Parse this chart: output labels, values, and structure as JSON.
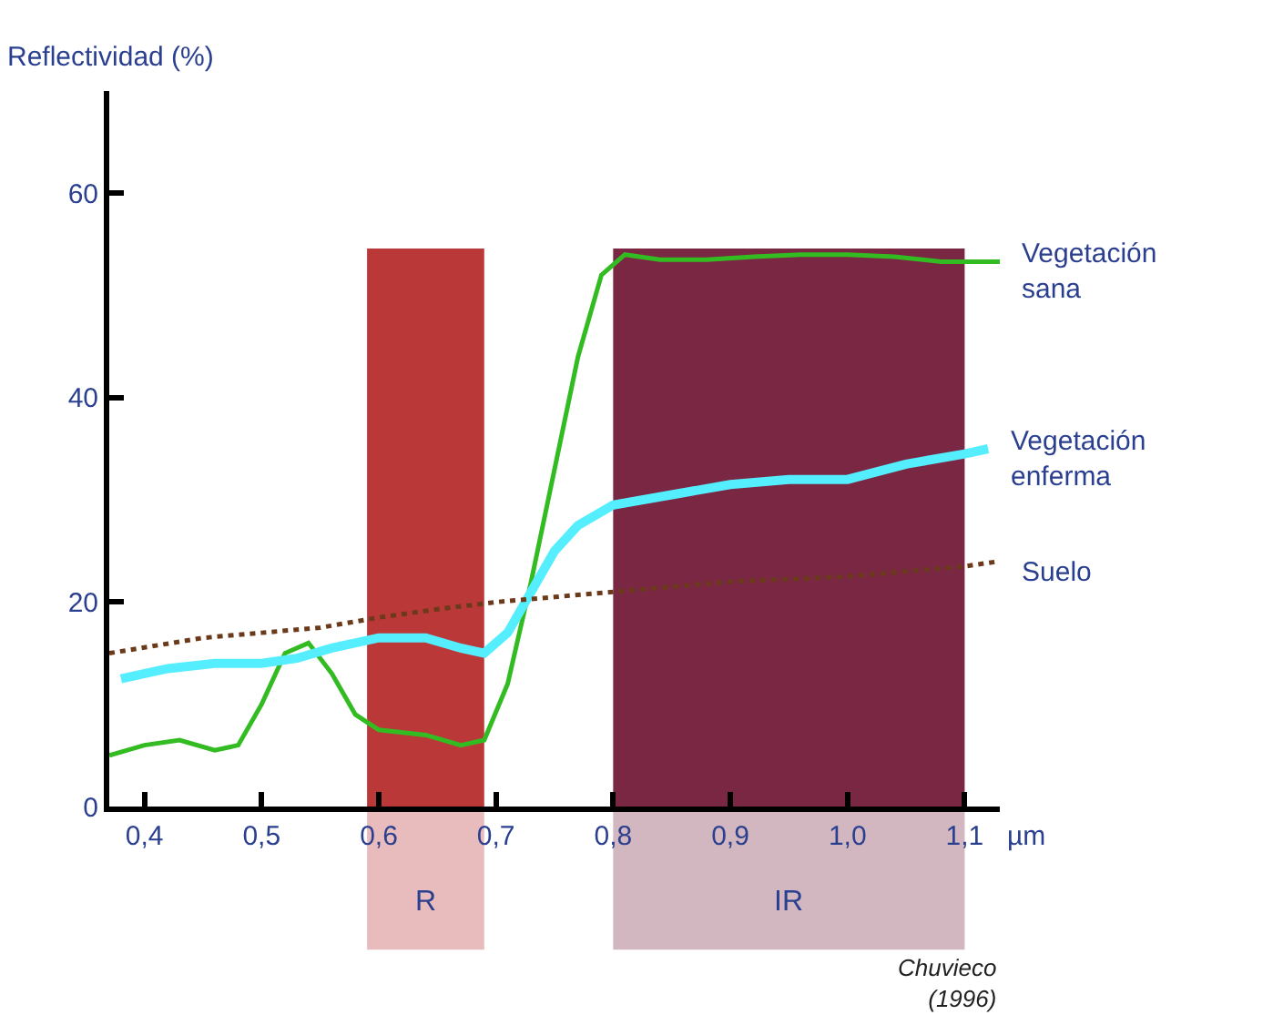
{
  "chart_data": {
    "type": "line",
    "ylabel": "Reflectividad (%)",
    "xlabel": "µm",
    "xlim": [
      0.37,
      1.13
    ],
    "xticks": [
      {
        "value": 0.4,
        "label": "0,4"
      },
      {
        "value": 0.5,
        "label": "0,5"
      },
      {
        "value": 0.6,
        "label": "0,6"
      },
      {
        "value": 0.7,
        "label": "0,7"
      },
      {
        "value": 0.8,
        "label": "0,8"
      },
      {
        "value": 0.9,
        "label": "0,9"
      },
      {
        "value": 1.0,
        "label": "1,0"
      },
      {
        "value": 1.1,
        "label": "1,1"
      }
    ],
    "ylim": [
      0,
      70
    ],
    "yticks": [
      0,
      20,
      40,
      60
    ],
    "grid": false,
    "legend": false,
    "series": [
      {
        "name": "Vegetación sana",
        "color": "#33bb22",
        "line_style": "solid",
        "x": [
          0.37,
          0.4,
          0.43,
          0.46,
          0.48,
          0.5,
          0.52,
          0.54,
          0.56,
          0.58,
          0.6,
          0.64,
          0.67,
          0.69,
          0.71,
          0.73,
          0.75,
          0.77,
          0.79,
          0.81,
          0.84,
          0.88,
          0.92,
          0.96,
          1.0,
          1.04,
          1.08,
          1.13
        ],
        "values": [
          5,
          6,
          6.5,
          5.5,
          6,
          10,
          15,
          16,
          13,
          9,
          7.5,
          7,
          6,
          6.5,
          12,
          22,
          33,
          44,
          52,
          54,
          53.5,
          53.5,
          53.8,
          54,
          54,
          53.8,
          53.3,
          53.3
        ]
      },
      {
        "name": "Vegetación enferma",
        "color": "#55eeff",
        "line_style": "solid",
        "x": [
          0.38,
          0.42,
          0.46,
          0.5,
          0.53,
          0.56,
          0.6,
          0.64,
          0.67,
          0.69,
          0.71,
          0.73,
          0.75,
          0.77,
          0.8,
          0.85,
          0.9,
          0.95,
          1.0,
          1.05,
          1.1,
          1.12
        ],
        "values": [
          12.5,
          13.5,
          14,
          14,
          14.5,
          15.5,
          16.5,
          16.5,
          15.5,
          15,
          17,
          21,
          25,
          27.5,
          29.5,
          30.5,
          31.5,
          32,
          32,
          33.5,
          34.5,
          35
        ]
      },
      {
        "name": "Suelo",
        "color": "#6b3a1a",
        "line_style": "dotted",
        "x": [
          0.37,
          0.45,
          0.5,
          0.55,
          0.6,
          0.65,
          0.7,
          0.75,
          0.8,
          0.9,
          1.0,
          1.1,
          1.13
        ],
        "values": [
          15,
          16.5,
          17,
          17.5,
          18.5,
          19.3,
          20,
          20.5,
          21,
          22,
          22.5,
          23.5,
          24
        ]
      }
    ],
    "bands": [
      {
        "axis": "x",
        "from": 0.59,
        "to": 0.69,
        "label": "R",
        "color": "#b22222"
      },
      {
        "axis": "x",
        "from": 0.8,
        "to": 1.1,
        "label": "IR",
        "color": "#6b1030"
      }
    ],
    "annotations": [
      "Chuvieco (1996)"
    ]
  }
}
